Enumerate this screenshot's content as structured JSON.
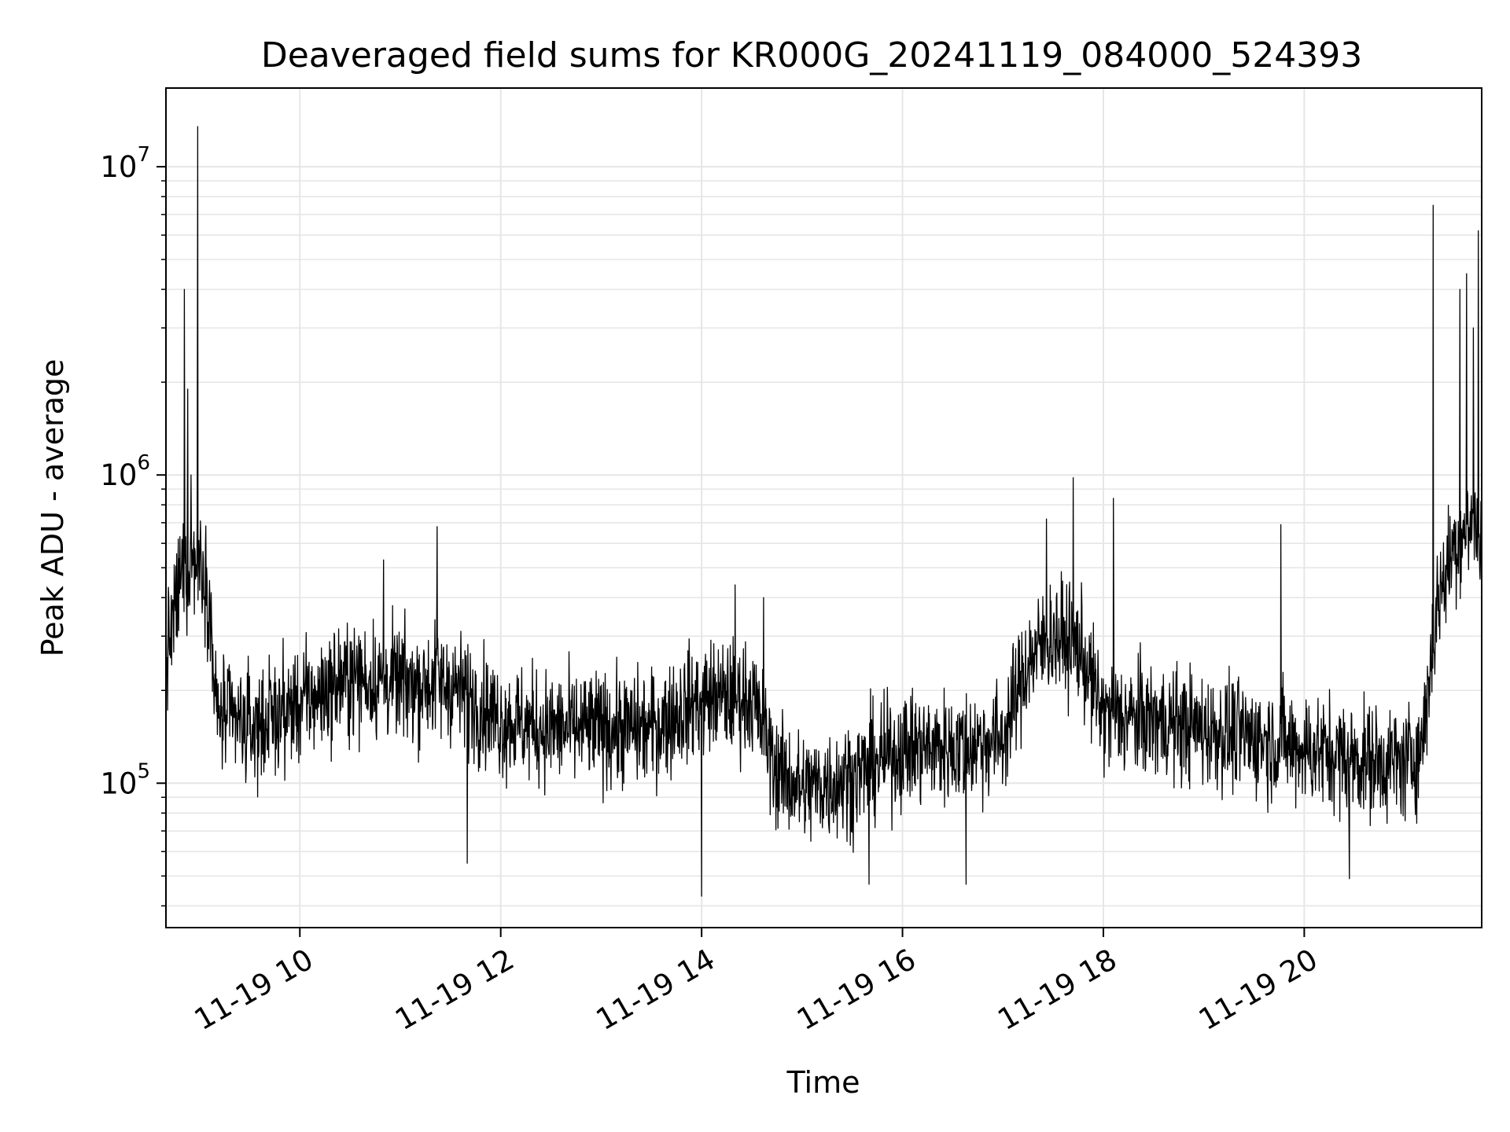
{
  "chart_data": {
    "type": "line",
    "title": "Deaveraged field sums for KR000G_20241119_084000_524393",
    "xlabel": "Time",
    "ylabel": "Peak ADU - average",
    "yscale": "log",
    "ylim": [
      34000,
      18000000
    ],
    "xlim": [
      "2024-11-19 08:40",
      "2024-11-19 21:46"
    ],
    "grid": true,
    "line_color": "#000000",
    "grid_color": "#e6e6e6",
    "x_ticks": [
      {
        "value": "2024-11-19 10:00",
        "label": "11-19 10"
      },
      {
        "value": "2024-11-19 12:00",
        "label": "11-19 12"
      },
      {
        "value": "2024-11-19 14:00",
        "label": "11-19 14"
      },
      {
        "value": "2024-11-19 16:00",
        "label": "11-19 16"
      },
      {
        "value": "2024-11-19 18:00",
        "label": "11-19 18"
      },
      {
        "value": "2024-11-19 20:00",
        "label": "11-19 20"
      }
    ],
    "y_ticks": [
      {
        "value": 100000,
        "base": "10",
        "exp": "5"
      },
      {
        "value": 1000000,
        "base": "10",
        "exp": "6"
      },
      {
        "value": 10000000,
        "base": "10",
        "exp": "7"
      }
    ],
    "series": [
      {
        "x": [
          "2024-11-19 08:40",
          "2024-11-19 08:50",
          "2024-11-19 09:00",
          "2024-11-19 09:05",
          "2024-11-19 09:10",
          "2024-11-19 09:30",
          "2024-11-19 10:00",
          "2024-11-19 10:30",
          "2024-11-19 11:00",
          "2024-11-19 11:30",
          "2024-11-19 12:00",
          "2024-11-19 12:30",
          "2024-11-19 13:00",
          "2024-11-19 13:30",
          "2024-11-19 14:00",
          "2024-11-19 14:30",
          "2024-11-19 14:45",
          "2024-11-19 15:00",
          "2024-11-19 15:30",
          "2024-11-19 16:00",
          "2024-11-19 16:30",
          "2024-11-19 17:00",
          "2024-11-19 17:15",
          "2024-11-19 17:30",
          "2024-11-19 17:45",
          "2024-11-19 18:00",
          "2024-11-19 18:30",
          "2024-11-19 19:00",
          "2024-11-19 19:30",
          "2024-11-19 20:00",
          "2024-11-19 20:30",
          "2024-11-19 21:00",
          "2024-11-19 21:10",
          "2024-11-19 21:20",
          "2024-11-19 21:30",
          "2024-11-19 21:40",
          "2024-11-19 21:46"
        ],
        "values": [
          250000,
          500000,
          550000,
          450000,
          170000,
          150000,
          180000,
          220000,
          210000,
          210000,
          160000,
          150000,
          150000,
          150000,
          190000,
          190000,
          110000,
          95000,
          105000,
          130000,
          130000,
          140000,
          250000,
          300000,
          280000,
          165000,
          160000,
          150000,
          140000,
          130000,
          120000,
          115000,
          130000,
          400000,
          600000,
          700000,
          650000
        ],
        "spikes": [
          {
            "x": "2024-11-19 08:51",
            "value": 4000000
          },
          {
            "x": "2024-11-19 08:53",
            "value": 1900000
          },
          {
            "x": "2024-11-19 08:55",
            "value": 1000000
          },
          {
            "x": "2024-11-19 08:59",
            "value": 13500000
          },
          {
            "x": "2024-11-19 10:50",
            "value": 530000
          },
          {
            "x": "2024-11-19 11:22",
            "value": 680000
          },
          {
            "x": "2024-11-19 11:40",
            "value": 55000
          },
          {
            "x": "2024-11-19 14:00",
            "value": 43000
          },
          {
            "x": "2024-11-19 14:20",
            "value": 440000
          },
          {
            "x": "2024-11-19 14:37",
            "value": 400000
          },
          {
            "x": "2024-11-19 15:40",
            "value": 47000
          },
          {
            "x": "2024-11-19 16:38",
            "value": 47000
          },
          {
            "x": "2024-11-19 17:26",
            "value": 720000
          },
          {
            "x": "2024-11-19 17:42",
            "value": 980000
          },
          {
            "x": "2024-11-19 18:06",
            "value": 840000
          },
          {
            "x": "2024-11-19 19:46",
            "value": 690000
          },
          {
            "x": "2024-11-19 20:27",
            "value": 49000
          },
          {
            "x": "2024-11-19 21:17",
            "value": 7500000
          },
          {
            "x": "2024-11-19 21:33",
            "value": 4000000
          },
          {
            "x": "2024-11-19 21:37",
            "value": 4500000
          },
          {
            "x": "2024-11-19 21:41",
            "value": 3000000
          },
          {
            "x": "2024-11-19 21:44",
            "value": 6200000
          }
        ]
      }
    ]
  }
}
